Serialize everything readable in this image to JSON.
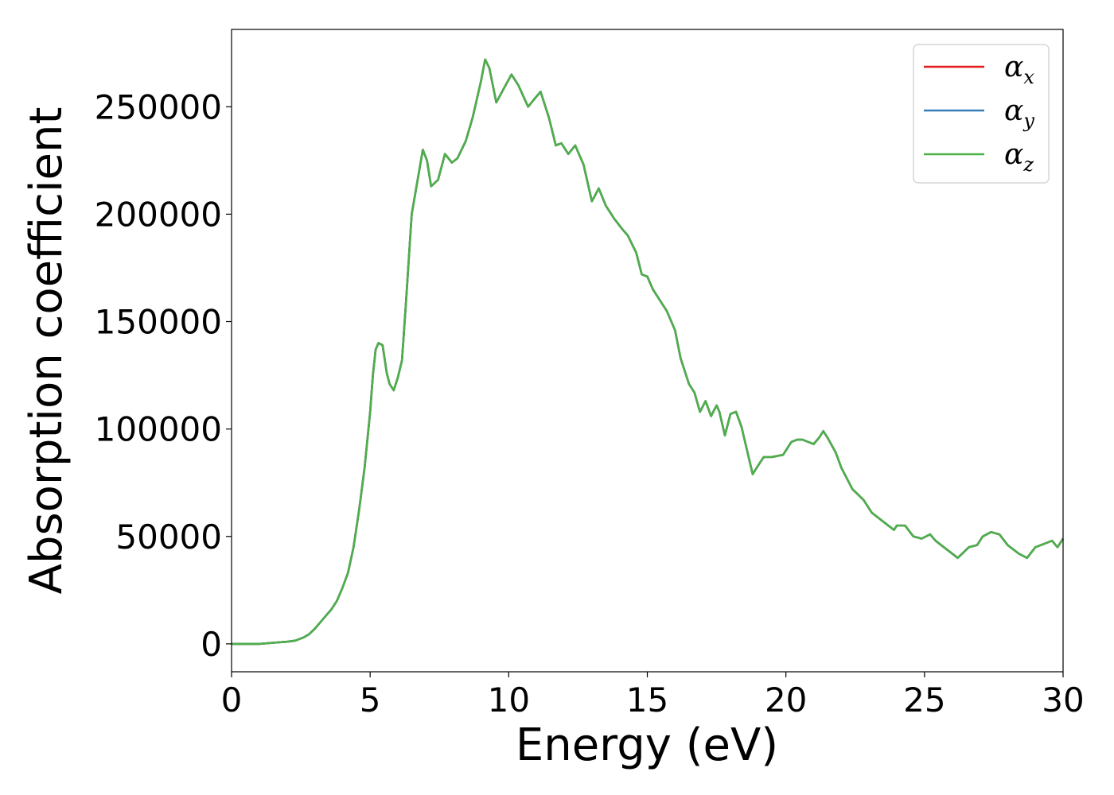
{
  "chart_data": {
    "type": "line",
    "xlabel": "Energy (eV)",
    "ylabel": "Absorption coefficient",
    "xlim": [
      0,
      30
    ],
    "ylim": [
      -13000,
      286000
    ],
    "xticks": [
      0,
      5,
      10,
      15,
      20,
      25,
      30
    ],
    "xtick_labels": [
      "0",
      "5",
      "10",
      "15",
      "20",
      "25",
      "30"
    ],
    "yticks": [
      0,
      50000,
      100000,
      150000,
      200000,
      250000
    ],
    "ytick_labels": [
      "0",
      "50000",
      "100000",
      "150000",
      "200000",
      "250000"
    ],
    "grid": false,
    "legend_position": "top-right",
    "legend": [
      {
        "symbol": "α",
        "subscript": "x",
        "color": "#e41a1c"
      },
      {
        "symbol": "α",
        "subscript": "y",
        "color": "#377eb8"
      },
      {
        "symbol": "α",
        "subscript": "z",
        "color": "#4daf4a"
      }
    ],
    "x": [
      0,
      0.5,
      1,
      1.5,
      2,
      2.3,
      2.6,
      2.8,
      3.0,
      3.2,
      3.4,
      3.6,
      3.8,
      4.0,
      4.2,
      4.4,
      4.6,
      4.8,
      5.0,
      5.1,
      5.2,
      5.3,
      5.45,
      5.6,
      5.7,
      5.85,
      6.0,
      6.15,
      6.3,
      6.5,
      6.7,
      6.9,
      7.05,
      7.2,
      7.45,
      7.7,
      7.95,
      8.15,
      8.45,
      8.7,
      9.0,
      9.15,
      9.3,
      9.55,
      9.8,
      10.1,
      10.35,
      10.7,
      10.95,
      11.15,
      11.45,
      11.7,
      11.9,
      12.15,
      12.4,
      12.7,
      13.0,
      13.25,
      13.5,
      13.8,
      14.1,
      14.3,
      14.6,
      14.8,
      15.0,
      15.2,
      15.5,
      15.7,
      16.0,
      16.2,
      16.5,
      16.7,
      16.9,
      17.1,
      17.3,
      17.5,
      17.6,
      17.8,
      18.0,
      18.2,
      18.4,
      18.6,
      18.8,
      19.0,
      19.2,
      19.5,
      19.9,
      20.2,
      20.4,
      20.6,
      20.8,
      21.0,
      21.2,
      21.35,
      21.5,
      21.8,
      22.0,
      22.4,
      22.8,
      23.1,
      23.5,
      23.9,
      24.0,
      24.3,
      24.6,
      24.9,
      25.2,
      25.4,
      25.7,
      25.9,
      26.2,
      26.6,
      26.9,
      27.1,
      27.4,
      27.7,
      28.0,
      28.4,
      28.7,
      29.0,
      29.4,
      29.6,
      29.8,
      30.0
    ],
    "series": [
      {
        "values": [
          0,
          0,
          0,
          500,
          1000,
          1500,
          3000,
          4500,
          7000,
          10000,
          13000,
          16000,
          20000,
          26000,
          33000,
          45000,
          62000,
          82000,
          108000,
          125000,
          137000,
          140000,
          139000,
          126000,
          121000,
          118000,
          124000,
          132000,
          160000,
          200000,
          215000,
          230000,
          225000,
          213000,
          216000,
          228000,
          224000,
          226000,
          234000,
          245000,
          262000,
          272000,
          268000,
          252000,
          258000,
          265000,
          260000,
          250000,
          254000,
          257000,
          245000,
          232000,
          233000,
          228000,
          232000,
          223000,
          206000,
          212000,
          204000,
          198000,
          193000,
          190000,
          182000,
          172000,
          171000,
          165000,
          159000,
          155000,
          146000,
          133000,
          121000,
          117000,
          108000,
          113000,
          106000,
          111000,
          108000,
          97000,
          107000,
          108000,
          101000,
          90000,
          79000,
          83000,
          87000,
          87000,
          88000,
          94000,
          95000,
          95000,
          94000,
          93000,
          96000,
          99000,
          96000,
          89000,
          82000,
          72000,
          67000,
          61000,
          57000,
          53000,
          55000,
          55000,
          50000,
          49000,
          51000,
          48000,
          45000,
          43000,
          40000,
          45000,
          46000,
          50000,
          52000,
          51000,
          46000,
          42000,
          40000,
          45000,
          47000,
          48000,
          45000,
          49000
        ]
      },
      {
        "values": [
          0,
          0,
          0,
          500,
          1000,
          1500,
          3000,
          4500,
          7000,
          10000,
          13000,
          16000,
          20000,
          26000,
          33000,
          45000,
          62000,
          82000,
          108000,
          125000,
          137000,
          140000,
          139000,
          126000,
          121000,
          118000,
          124000,
          132000,
          160000,
          200000,
          215000,
          230000,
          225000,
          213000,
          216000,
          228000,
          224000,
          226000,
          234000,
          245000,
          262000,
          272000,
          268000,
          252000,
          258000,
          265000,
          260000,
          250000,
          254000,
          257000,
          245000,
          232000,
          233000,
          228000,
          232000,
          223000,
          206000,
          212000,
          204000,
          198000,
          193000,
          190000,
          182000,
          172000,
          171000,
          165000,
          159000,
          155000,
          146000,
          133000,
          121000,
          117000,
          108000,
          113000,
          106000,
          111000,
          108000,
          97000,
          107000,
          108000,
          101000,
          90000,
          79000,
          83000,
          87000,
          87000,
          88000,
          94000,
          95000,
          95000,
          94000,
          93000,
          96000,
          99000,
          96000,
          89000,
          82000,
          72000,
          67000,
          61000,
          57000,
          53000,
          55000,
          55000,
          50000,
          49000,
          51000,
          48000,
          45000,
          43000,
          40000,
          45000,
          46000,
          50000,
          52000,
          51000,
          46000,
          42000,
          40000,
          45000,
          47000,
          48000,
          45000,
          49000
        ]
      },
      {
        "values": [
          0,
          0,
          0,
          500,
          1000,
          1500,
          3000,
          4500,
          7000,
          10000,
          13000,
          16000,
          20000,
          26000,
          33000,
          45000,
          62000,
          82000,
          108000,
          125000,
          137000,
          140000,
          139000,
          126000,
          121000,
          118000,
          124000,
          132000,
          160000,
          200000,
          215000,
          230000,
          225000,
          213000,
          216000,
          228000,
          224000,
          226000,
          234000,
          245000,
          262000,
          272000,
          268000,
          252000,
          258000,
          265000,
          260000,
          250000,
          254000,
          257000,
          245000,
          232000,
          233000,
          228000,
          232000,
          223000,
          206000,
          212000,
          204000,
          198000,
          193000,
          190000,
          182000,
          172000,
          171000,
          165000,
          159000,
          155000,
          146000,
          133000,
          121000,
          117000,
          108000,
          113000,
          106000,
          111000,
          108000,
          97000,
          107000,
          108000,
          101000,
          90000,
          79000,
          83000,
          87000,
          87000,
          88000,
          94000,
          95000,
          95000,
          94000,
          93000,
          96000,
          99000,
          96000,
          89000,
          82000,
          72000,
          67000,
          61000,
          57000,
          53000,
          55000,
          55000,
          50000,
          49000,
          51000,
          48000,
          45000,
          43000,
          40000,
          45000,
          46000,
          50000,
          52000,
          51000,
          46000,
          42000,
          40000,
          45000,
          47000,
          48000,
          45000,
          49000
        ]
      }
    ]
  }
}
